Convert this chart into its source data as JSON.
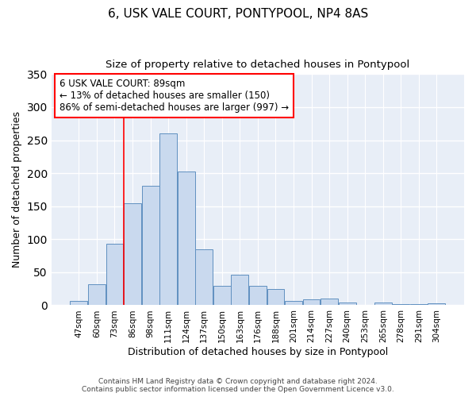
{
  "title": "6, USK VALE COURT, PONTYPOOL, NP4 8AS",
  "subtitle": "Size of property relative to detached houses in Pontypool",
  "xlabel": "Distribution of detached houses by size in Pontypool",
  "ylabel": "Number of detached properties",
  "bar_labels": [
    "47sqm",
    "60sqm",
    "73sqm",
    "86sqm",
    "98sqm",
    "111sqm",
    "124sqm",
    "137sqm",
    "150sqm",
    "163sqm",
    "176sqm",
    "188sqm",
    "201sqm",
    "214sqm",
    "227sqm",
    "240sqm",
    "253sqm",
    "265sqm",
    "278sqm",
    "291sqm",
    "304sqm"
  ],
  "bar_values": [
    6,
    32,
    93,
    155,
    181,
    260,
    202,
    85,
    29,
    46,
    29,
    24,
    6,
    9,
    10,
    4,
    0,
    4,
    2,
    2,
    3
  ],
  "bar_color": "#c9d9ee",
  "bar_edge_color": "#6090c0",
  "vline_index": 3,
  "vline_color": "red",
  "annotation_title": "6 USK VALE COURT: 89sqm",
  "annotation_line1": "← 13% of detached houses are smaller (150)",
  "annotation_line2": "86% of semi-detached houses are larger (997) →",
  "annotation_box_color": "white",
  "annotation_box_edge_color": "red",
  "ylim": [
    0,
    350
  ],
  "yticks": [
    0,
    50,
    100,
    150,
    200,
    250,
    300,
    350
  ],
  "footer1": "Contains HM Land Registry data © Crown copyright and database right 2024.",
  "footer2": "Contains public sector information licensed under the Open Government Licence v3.0.",
  "bg_color": "#ffffff",
  "plot_bg_color": "#e8eef7"
}
